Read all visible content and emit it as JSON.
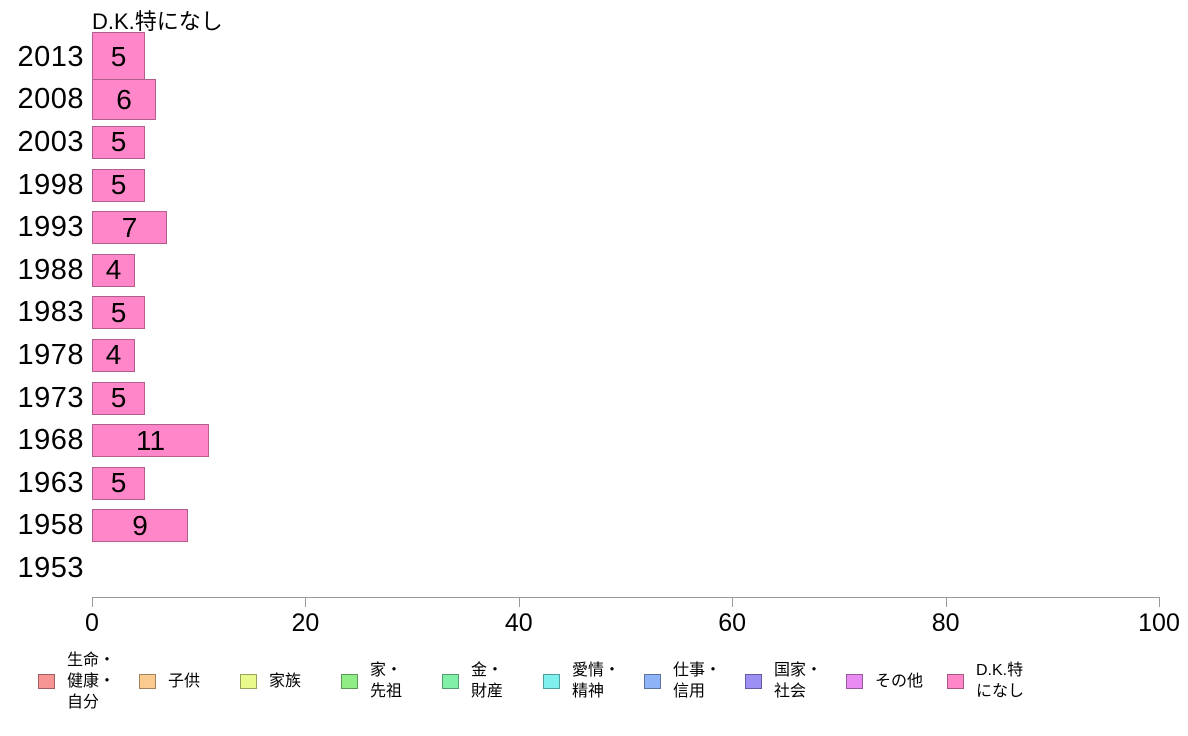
{
  "chart_data": {
    "type": "bar",
    "orientation": "horizontal",
    "title": "D.K.特になし",
    "categories": [
      "2013",
      "2008",
      "2003",
      "1998",
      "1993",
      "1988",
      "1983",
      "1978",
      "1973",
      "1968",
      "1963",
      "1958",
      "1953"
    ],
    "values": [
      5,
      6,
      5,
      5,
      7,
      4,
      5,
      4,
      5,
      11,
      5,
      9,
      null
    ],
    "xlabel": "",
    "ylabel": "",
    "xlim": [
      0,
      100
    ],
    "x_ticks": [
      0,
      20,
      40,
      60,
      80,
      100
    ],
    "bar_color": "#FF87C9",
    "bar_border_color": "rgba(0,0,0,0.30)",
    "axis_color": "#999999",
    "grid": false,
    "legend_position": "bottom",
    "value_labels_shown": true
  },
  "legend": {
    "items": [
      {
        "label": "生命・健康・自分",
        "lines": [
          "生命・",
          "健康・",
          "自分"
        ],
        "color": "#F79494"
      },
      {
        "label": "子供",
        "lines": [
          "子供"
        ],
        "color": "#FACA8F"
      },
      {
        "label": "家族",
        "lines": [
          "家族"
        ],
        "color": "#E9F98B"
      },
      {
        "label": "家・先祖",
        "lines": [
          "家・",
          "先祖"
        ],
        "color": "#90EC85"
      },
      {
        "label": "金・財産",
        "lines": [
          "金・",
          "財産"
        ],
        "color": "#82EFA9"
      },
      {
        "label": "愛情・精神",
        "lines": [
          "愛情・",
          "精神"
        ],
        "color": "#7FF0EE"
      },
      {
        "label": "仕事・信用",
        "lines": [
          "仕事・",
          "信用"
        ],
        "color": "#8FB3F7"
      },
      {
        "label": "国家・社会",
        "lines": [
          "国家・",
          "社会"
        ],
        "color": "#9C90F5"
      },
      {
        "label": "その他",
        "lines": [
          "その他"
        ],
        "color": "#E98BF2"
      },
      {
        "label": "D.K.特になし",
        "lines": [
          "D.K.特",
          "になし"
        ],
        "color": "#FF87C9"
      }
    ]
  }
}
